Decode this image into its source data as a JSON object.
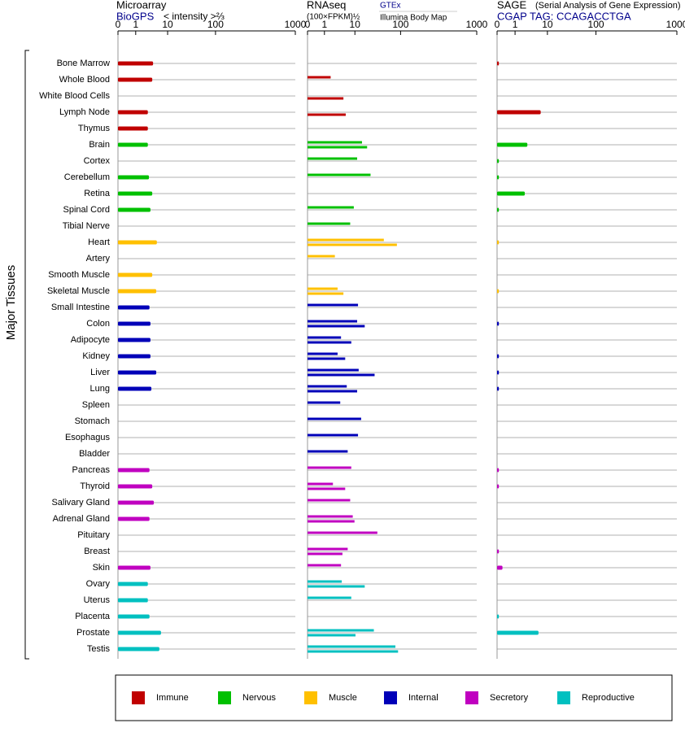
{
  "chart_data": {
    "type": "bar",
    "y_label": "Major Tissues",
    "groups": [
      {
        "name": "Immune",
        "color": "#c00000",
        "tissues": [
          "Bone Marrow",
          "Whole Blood",
          "White Blood Cells",
          "Lymph Node",
          "Thymus"
        ]
      },
      {
        "name": "Nervous",
        "color": "#00c000",
        "tissues": [
          "Brain",
          "Cortex",
          "Cerebellum",
          "Retina",
          "Spinal Cord",
          "Tibial Nerve"
        ]
      },
      {
        "name": "Muscle",
        "color": "#ffc000",
        "tissues": [
          "Heart",
          "Artery",
          "Smooth Muscle",
          "Skeletal Muscle"
        ]
      },
      {
        "name": "Internal",
        "color": "#0000b8",
        "tissues": [
          "Small Intestine",
          "Colon",
          "Adipocyte",
          "Kidney",
          "Liver",
          "Lung",
          "Spleen",
          "Stomach",
          "Esophagus",
          "Bladder"
        ]
      },
      {
        "name": "Secretory",
        "color": "#c000c0",
        "tissues": [
          "Pancreas",
          "Thyroid",
          "Salivary Gland",
          "Adrenal Gland",
          "Pituitary",
          "Breast",
          "Skin"
        ]
      },
      {
        "name": "Reproductive",
        "color": "#00c0c0",
        "tissues": [
          "Ovary",
          "Uterus",
          "Placenta",
          "Prostate",
          "Testis"
        ]
      }
    ],
    "panels": [
      {
        "title": "Microarray",
        "x_label": "< intensity >⅔",
        "xlim": [
          0,
          1000
        ],
        "xticks": [
          0,
          1,
          10,
          100,
          1000
        ],
        "series": [
          {
            "name": "BioGPS",
            "values": [
              3.5,
              3.3,
              null,
              2.4,
              2.4,
              2.4,
              null,
              2.6,
              3.3,
              2.9,
              null,
              4.6,
              null,
              3.3,
              4.4,
              2.7,
              2.9,
              2.9,
              2.9,
              4.4,
              3.1,
              null,
              null,
              null,
              null,
              2.7,
              3.3,
              3.7,
              2.7,
              null,
              null,
              2.9,
              2.4,
              2.4,
              2.7,
              6.2,
              5.5
            ]
          }
        ]
      },
      {
        "title": "RNAseq",
        "x_label": "(100×FPKM)½",
        "xlim": [
          0,
          1000
        ],
        "xticks": [
          0,
          1,
          10,
          100,
          1000
        ],
        "series": [
          {
            "name": "GTEx",
            "values": [
              null,
              1.6,
              null,
              null,
              null,
              14.3,
              11.2,
              22,
              null,
              9.2,
              7.0,
              43,
              2.2,
              null,
              2.7,
              11.7,
              11.2,
              3.5,
              2.7,
              12.1,
              5.4,
              3.3,
              13.7,
              11.7,
              5.8,
              7.6,
              1.9,
              7.0,
              8.5,
              31,
              5.8,
              3.5,
              3.7,
              7.6,
              null,
              26,
              77
            ]
          },
          {
            "name": "Illumina Body Map",
            "values": [
              null,
              null,
              4.2,
              5.0,
              null,
              18.5,
              null,
              null,
              null,
              null,
              null,
              83,
              null,
              null,
              4.2,
              null,
              16.4,
              7.6,
              4.8,
              27,
              11.2,
              null,
              null,
              null,
              null,
              null,
              4.8,
              null,
              9.7,
              null,
              3.9,
              null,
              16.4,
              null,
              null,
              10.3,
              88
            ]
          }
        ]
      },
      {
        "title": "SAGE",
        "subtitle": "(Serial Analysis of Gene Expression)",
        "xlim": [
          0,
          1000
        ],
        "xticks": [
          0,
          1,
          10,
          100,
          1000
        ],
        "series": [
          {
            "name": "CGAP TAG: CCAGACCTGA",
            "values": [
              0.1,
              null,
              null,
              6.2,
              null,
              2.4,
              0.1,
              0.1,
              2.0,
              0.1,
              null,
              0.1,
              null,
              null,
              0.1,
              null,
              0.1,
              null,
              0.1,
              0.1,
              0.1,
              null,
              null,
              null,
              null,
              0.1,
              0.1,
              null,
              null,
              null,
              0.1,
              0.3,
              null,
              null,
              0.1,
              5.3,
              null
            ]
          }
        ]
      }
    ]
  }
}
